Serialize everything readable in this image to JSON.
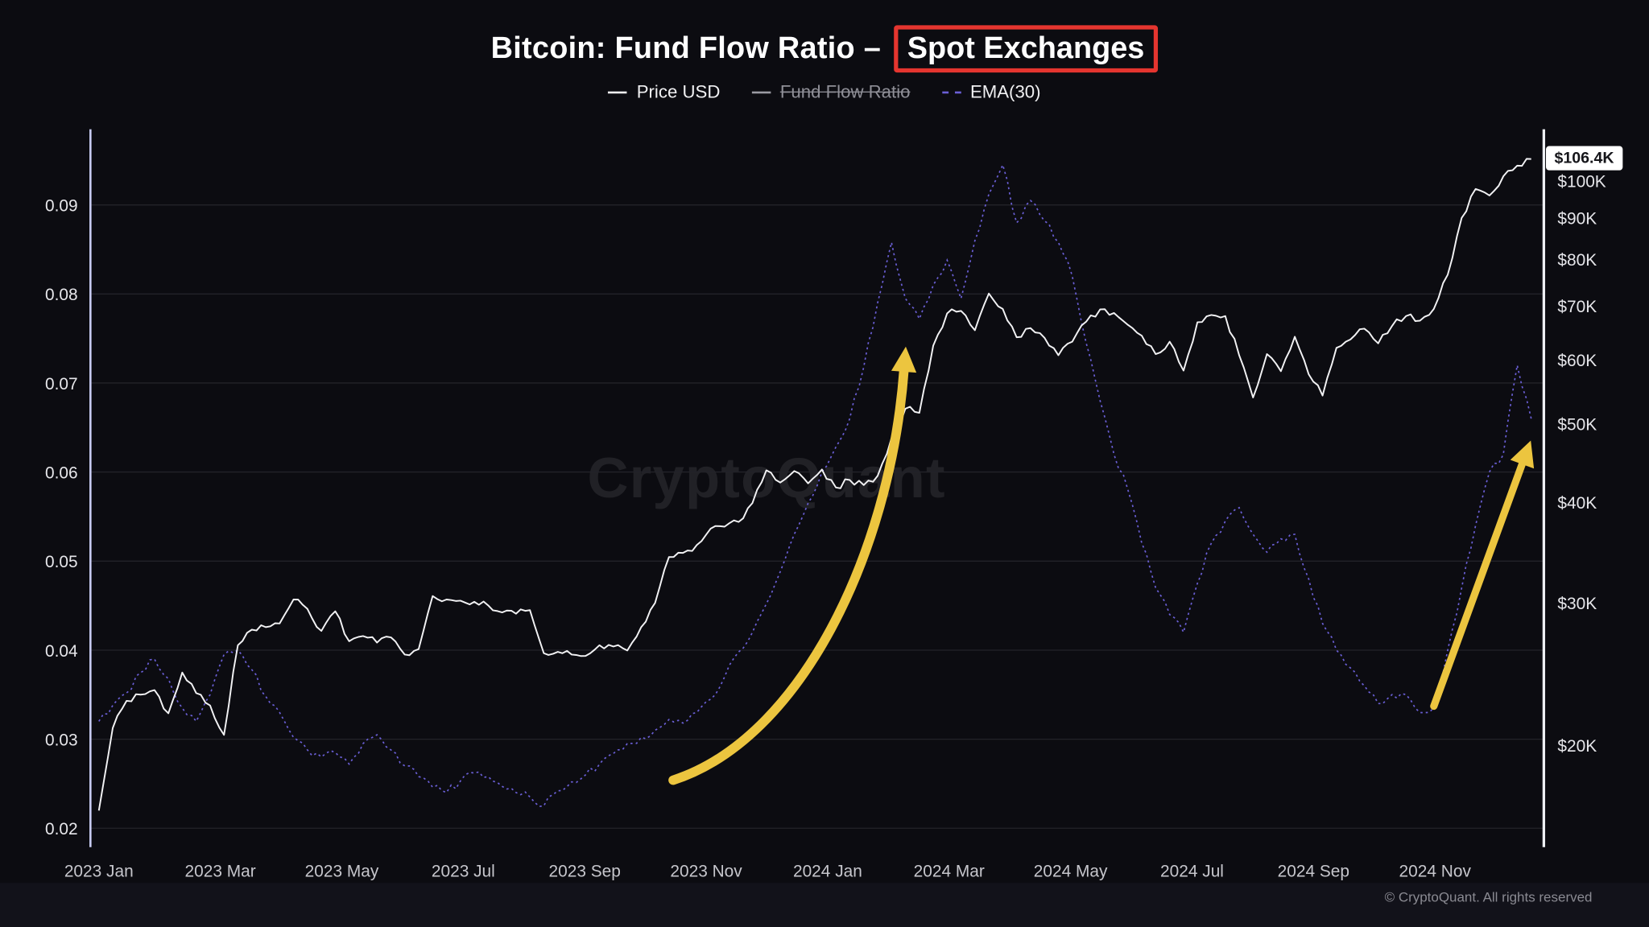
{
  "app": {
    "watermark": "CryptoQuant",
    "copyright": "© CryptoQuant. All rights reserved"
  },
  "chart_data": {
    "type": "line",
    "title": "Bitcoin: Fund Flow Ratio – Spot Exchanges",
    "title_prefix": "Bitcoin: Fund Flow Ratio –",
    "title_highlight": "Spot Exchanges",
    "last_price_label": "$106.4K",
    "last_price_k": 106.4,
    "x_interval": "weekly, Jan 2023 – mid Dec 2024",
    "x_tick_labels": [
      "2023 Jan",
      "2023 Mar",
      "2023 May",
      "2023 Jul",
      "2023 Sep",
      "2023 Nov",
      "2024 Jan",
      "2024 Mar",
      "2024 May",
      "2024 Jul",
      "2024 Sep",
      "2024 Nov"
    ],
    "left_axis": {
      "label": "Fund Flow Ratio",
      "scale": "linear",
      "ticks": [
        0.09,
        0.08,
        0.07,
        0.06,
        0.05,
        0.04,
        0.03,
        0.02
      ],
      "range": [
        0.018,
        0.0985
      ]
    },
    "right_axis": {
      "label": "Price USD",
      "scale": "log",
      "ticks": [
        {
          "label": "$100K",
          "k": 100
        },
        {
          "label": "$90K",
          "k": 90
        },
        {
          "label": "$80K",
          "k": 80
        },
        {
          "label": "$70K",
          "k": 70
        },
        {
          "label": "$60K",
          "k": 60
        },
        {
          "label": "$50K",
          "k": 50
        },
        {
          "label": "$40K",
          "k": 40
        },
        {
          "label": "$30K",
          "k": 30
        },
        {
          "label": "$20K",
          "k": 20
        }
      ]
    },
    "series": [
      {
        "name": "Price USD",
        "axis": "right",
        "color": "#f2f2f4",
        "style": "solid",
        "unit": "thousand USD",
        "values": [
          16.6,
          21.0,
          22.7,
          23.1,
          23.4,
          21.9,
          24.6,
          23.2,
          22.4,
          20.6,
          26.6,
          27.8,
          28.0,
          28.3,
          30.3,
          29.5,
          27.7,
          29.3,
          26.9,
          27.3,
          26.8,
          27.2,
          25.9,
          26.3,
          30.6,
          30.3,
          30.2,
          30.1,
          29.8,
          29.2,
          29.1,
          29.4,
          26.0,
          26.1,
          25.9,
          25.8,
          26.6,
          26.5,
          26.2,
          28.0,
          30.0,
          34.2,
          34.6,
          35.4,
          37.1,
          37.3,
          37.8,
          39.9,
          43.8,
          42.3,
          43.7,
          42.2,
          43.9,
          41.7,
          42.6,
          42.0,
          43.1,
          48.0,
          52.2,
          51.6,
          62.5,
          68.5,
          69.0,
          65.3,
          72.5,
          69.4,
          64.0,
          65.7,
          63.9,
          60.8,
          63.2,
          66.9,
          69.3,
          68.6,
          66.3,
          64.3,
          61.0,
          63.2,
          58.2,
          66.8,
          68.2,
          68.0,
          60.8,
          53.9,
          61.0,
          58.1,
          64.1,
          57.6,
          54.2,
          62.1,
          63.6,
          65.6,
          62.9,
          66.1,
          68.0,
          67.1,
          69.4,
          76.5,
          90.0,
          97.7,
          95.9,
          101.3,
          104.4,
          106.4
        ]
      },
      {
        "name": "Fund Flow Ratio",
        "axis": "left",
        "color": "#9b9ba3",
        "style": "solid",
        "disabled": true,
        "values": []
      },
      {
        "name": "EMA(30)",
        "axis": "left",
        "color": "#6a5fd6",
        "style": "dashed",
        "values": [
          0.032,
          0.0338,
          0.0352,
          0.0375,
          0.039,
          0.0368,
          0.0335,
          0.032,
          0.035,
          0.0395,
          0.04,
          0.0378,
          0.0348,
          0.033,
          0.0302,
          0.0288,
          0.028,
          0.0285,
          0.0272,
          0.0295,
          0.0305,
          0.0288,
          0.027,
          0.0258,
          0.0246,
          0.024,
          0.0253,
          0.0262,
          0.0258,
          0.0247,
          0.024,
          0.0235,
          0.0225,
          0.0242,
          0.0252,
          0.026,
          0.0272,
          0.0284,
          0.0295,
          0.0302,
          0.031,
          0.0322,
          0.0318,
          0.033,
          0.0345,
          0.037,
          0.0398,
          0.042,
          0.0452,
          0.0488,
          0.053,
          0.0565,
          0.06,
          0.0628,
          0.066,
          0.0718,
          0.079,
          0.0858,
          0.0795,
          0.0772,
          0.081,
          0.0838,
          0.0795,
          0.086,
          0.0912,
          0.0945,
          0.088,
          0.0905,
          0.0882,
          0.0858,
          0.082,
          0.0745,
          0.068,
          0.062,
          0.058,
          0.052,
          0.047,
          0.044,
          0.042,
          0.0475,
          0.052,
          0.0545,
          0.056,
          0.053,
          0.051,
          0.0525,
          0.053,
          0.048,
          0.043,
          0.04,
          0.038,
          0.036,
          0.034,
          0.035,
          0.035,
          0.033,
          0.0335,
          0.04,
          0.047,
          0.054,
          0.06,
          0.062,
          0.072,
          0.066
        ]
      }
    ],
    "annotations": [
      {
        "kind": "curved-up-arrow",
        "start_week": 41.3,
        "start_ratio": 0.0254,
        "end_week": 57.9,
        "end_ratio": 0.0715,
        "stroke_width": 9
      },
      {
        "kind": "straight-up-arrow",
        "start_week": 96.0,
        "start_ratio": 0.0337,
        "end_week": 102.4,
        "end_ratio": 0.0611,
        "stroke_width": 7
      }
    ],
    "colors": {
      "background": "#0c0c11",
      "grid": "#232329",
      "axis_line_left": "#c7cbf2",
      "axis_line_right": "#eef0f4",
      "tick_text": "#e6e6ea",
      "x_tick_text": "#c6c6cc",
      "annotation": "#ecc53f",
      "highlight_box": "#e5352f",
      "price_line": "#f2f2f4",
      "ema_line": "#6a5fd6"
    }
  }
}
